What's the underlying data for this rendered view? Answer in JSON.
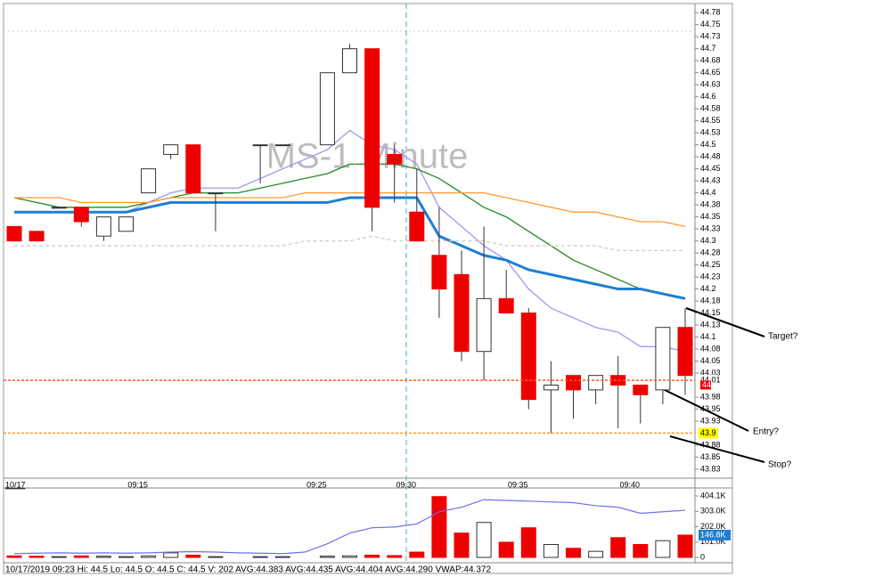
{
  "chart_data": [
    {
      "type": "candlestick",
      "title": "MS-1 Minute",
      "date_label": "10/17",
      "categories": [
        null,
        null,
        null,
        null,
        null,
        null,
        "09:15",
        null,
        null,
        null,
        null,
        null,
        null,
        null,
        "09:25",
        null,
        null,
        null,
        "09:30",
        null,
        null,
        null,
        null,
        "09:35",
        null,
        null,
        null,
        null,
        "09:40",
        null,
        null
      ],
      "open": [
        44.33,
        44.32,
        44.37,
        44.37,
        44.31,
        44.32,
        44.4,
        44.48,
        44.5,
        44.4,
        null,
        44.5,
        44.5,
        null,
        44.5,
        44.65,
        44.7,
        44.48,
        44.36,
        44.27,
        44.23,
        44.07,
        44.18,
        44.15,
        43.99,
        44.02,
        43.99,
        44.02,
        44.0,
        43.99,
        44.12
      ],
      "high": [
        44.33,
        44.32,
        44.37,
        44.37,
        44.35,
        44.35,
        44.45,
        44.5,
        44.5,
        44.4,
        null,
        44.5,
        44.5,
        null,
        44.65,
        44.71,
        44.7,
        44.5,
        44.45,
        44.37,
        44.28,
        44.33,
        44.24,
        44.16,
        44.05,
        44.02,
        44.02,
        44.06,
        44.0,
        44.12,
        44.16
      ],
      "low": [
        44.3,
        44.3,
        44.37,
        44.33,
        44.3,
        44.32,
        44.4,
        44.47,
        44.4,
        44.32,
        null,
        44.42,
        44.5,
        null,
        44.5,
        44.65,
        44.32,
        44.38,
        44.3,
        44.14,
        44.05,
        44.01,
        44.15,
        43.95,
        43.9,
        43.93,
        43.96,
        43.91,
        43.92,
        43.96,
        43.98
      ],
      "close": [
        44.3,
        44.3,
        44.37,
        44.34,
        44.35,
        44.35,
        44.45,
        44.5,
        44.4,
        44.4,
        null,
        44.5,
        44.5,
        null,
        44.65,
        44.7,
        44.37,
        44.46,
        44.3,
        44.2,
        44.07,
        44.18,
        44.15,
        43.97,
        44.0,
        43.99,
        44.02,
        44.0,
        43.98,
        44.12,
        44.02
      ],
      "up_color": "#ffffff",
      "down_color": "#ee0000",
      "lines": [
        {
          "color": "#9b9bf0",
          "values": [
            44.36,
            44.36,
            44.36,
            44.36,
            44.36,
            44.36,
            44.38,
            44.4,
            44.41,
            44.41,
            44.41,
            44.43,
            44.45,
            44.47,
            44.49,
            44.53,
            44.5,
            44.49,
            44.46,
            44.37,
            44.33,
            44.29,
            44.26,
            44.2,
            44.16,
            44.14,
            44.12,
            44.11,
            44.08,
            44.08,
            44.07
          ]
        },
        {
          "color": "#228b22",
          "values": [
            44.39,
            44.38,
            44.37,
            44.37,
            44.37,
            44.37,
            44.38,
            44.39,
            44.4,
            44.4,
            44.4,
            44.41,
            44.42,
            44.43,
            44.44,
            44.46,
            44.46,
            44.46,
            44.45,
            44.43,
            44.4,
            44.37,
            44.35,
            44.32,
            44.29,
            44.26,
            44.24,
            44.22,
            44.2,
            44.19,
            44.18
          ]
        },
        {
          "color": "#ff9933",
          "values": [
            44.39,
            44.39,
            44.39,
            44.38,
            44.38,
            44.38,
            44.38,
            44.39,
            44.39,
            44.39,
            44.39,
            44.39,
            44.39,
            44.4,
            44.4,
            44.4,
            44.4,
            44.4,
            44.4,
            44.4,
            44.4,
            44.4,
            44.39,
            44.38,
            44.37,
            44.36,
            44.36,
            44.35,
            44.34,
            44.34,
            44.33
          ]
        },
        {
          "color": "#1e7fd0",
          "values": [
            44.36,
            44.36,
            44.36,
            44.36,
            44.36,
            44.36,
            44.37,
            44.38,
            44.38,
            44.38,
            44.38,
            44.38,
            44.38,
            44.38,
            44.38,
            44.39,
            44.39,
            44.39,
            44.39,
            44.31,
            44.29,
            44.27,
            44.26,
            44.24,
            44.23,
            44.22,
            44.21,
            44.2,
            44.2,
            44.19,
            44.18
          ]
        },
        {
          "color": "#cccccc",
          "dashed": true,
          "values": [
            44.29,
            44.29,
            44.29,
            44.29,
            44.29,
            44.29,
            44.29,
            44.29,
            44.29,
            44.29,
            44.29,
            44.29,
            44.29,
            44.3,
            44.3,
            44.3,
            44.31,
            44.3,
            44.3,
            44.3,
            44.3,
            44.3,
            44.29,
            44.29,
            44.29,
            44.29,
            44.29,
            44.28,
            44.28,
            44.28,
            44.28
          ]
        }
      ],
      "hlines": [
        {
          "value": 44.01,
          "label": "44.01",
          "color": "#ff5a1a",
          "label_bg": "#ffffff"
        },
        {
          "value": 43.9,
          "label": "43.9",
          "color": "#ff9922",
          "label_bg": "#ffff00"
        }
      ],
      "price_marker": {
        "value": 44,
        "color": "#ee0000"
      },
      "annotations": [
        "Target?",
        "Entry?",
        "Stop?"
      ],
      "ylim": [
        43.81,
        44.794
      ],
      "yticks": [
        {
          "value": 44.775,
          "label": "44.78"
        },
        44.75,
        {
          "value": 44.725,
          "label": "44.73"
        },
        44.7,
        {
          "value": 44.675,
          "label": "44.68"
        },
        44.65,
        {
          "value": 44.625,
          "label": "44.63"
        },
        44.6,
        {
          "value": 44.575,
          "label": "44.58"
        },
        44.55,
        {
          "value": 44.525,
          "label": "44.53"
        },
        44.5,
        {
          "value": 44.475,
          "label": "44.48"
        },
        44.45,
        {
          "value": 44.425,
          "label": "44.43"
        },
        44.4,
        {
          "value": 44.375,
          "label": "44.38"
        },
        44.35,
        {
          "value": 44.325,
          "label": "44.33"
        },
        44.3,
        {
          "value": 44.275,
          "label": "44.28"
        },
        44.25,
        {
          "value": 44.225,
          "label": "44.23"
        },
        44.2,
        {
          "value": 44.175,
          "label": "44.18"
        },
        44.15,
        {
          "value": 44.125,
          "label": "44.13"
        },
        44.1,
        {
          "value": 44.075,
          "label": "44.08"
        },
        44.05,
        {
          "value": 44.025,
          "label": "44.03"
        },
        {
          "value": 43.975,
          "label": "43.98"
        },
        43.95,
        {
          "value": 43.925,
          "label": "43.93"
        },
        {
          "value": 43.875,
          "label": "43.88"
        },
        43.85,
        {
          "value": 43.825,
          "label": "43.83"
        }
      ]
    },
    {
      "type": "bar",
      "values": [
        10000,
        8000,
        5000,
        10000,
        8000,
        5000,
        10000,
        30000,
        15000,
        5000,
        null,
        5000,
        5000,
        null,
        8000,
        10000,
        15000,
        12000,
        35000,
        400000,
        160000,
        230000,
        100000,
        195000,
        85000,
        60000,
        40000,
        130000,
        85000,
        110000,
        146800
      ],
      "avg_line": {
        "color": "#7070e8",
        "values": [
          25000,
          28000,
          30000,
          28000,
          30000,
          28000,
          30000,
          35000,
          38000,
          35000,
          30000,
          28000,
          25000,
          35000,
          90000,
          160000,
          195000,
          200000,
          220000,
          300000,
          330000,
          380000,
          375000,
          370000,
          365000,
          360000,
          340000,
          330000,
          290000,
          300000,
          310000
        ]
      },
      "marker": {
        "value": 146800,
        "label": "146.8K"
      },
      "ylim": [
        -23400,
        456800
      ],
      "yticks": [
        {
          "value": 404100,
          "label": "404.1K"
        },
        {
          "value": 303000,
          "label": "303.0K"
        },
        {
          "value": 202000,
          "label": "202.0K"
        },
        {
          "value": 101000,
          "label": "101.0K"
        },
        0
      ]
    }
  ],
  "status_bar": "10/17/2019 09:23  Hi: 44.5  Lo: 44.5  O: 44.5  C: 44.5  V: 202  AVG:44.383  AVG:44.435  AVG:44.404  AVG:44.290  VWAP:44.372"
}
